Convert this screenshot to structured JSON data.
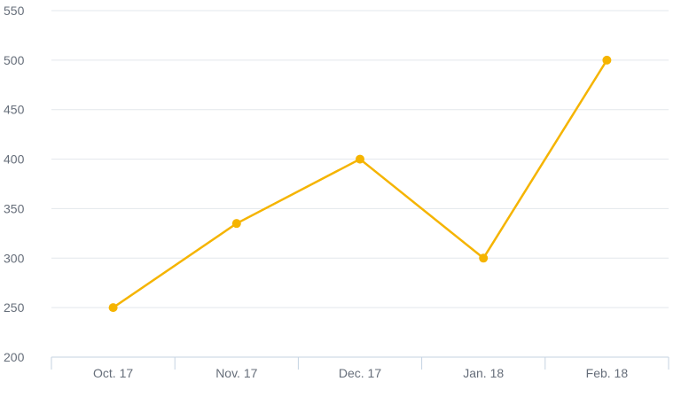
{
  "chart_data": {
    "type": "line",
    "categories": [
      "Oct. 17",
      "Nov. 17",
      "Dec. 17",
      "Jan. 18",
      "Feb. 18"
    ],
    "series": [
      {
        "values": [
          250,
          335,
          400,
          300,
          500
        ]
      }
    ],
    "ylim": [
      200,
      550
    ],
    "yticks": [
      200,
      250,
      300,
      350,
      400,
      450,
      500,
      550
    ],
    "grid": true,
    "legend": "none",
    "colors": {
      "series": "#f5b400",
      "grid": "#e3e7ec",
      "axis": "#c5d3e2",
      "text": "#666e7a"
    }
  }
}
